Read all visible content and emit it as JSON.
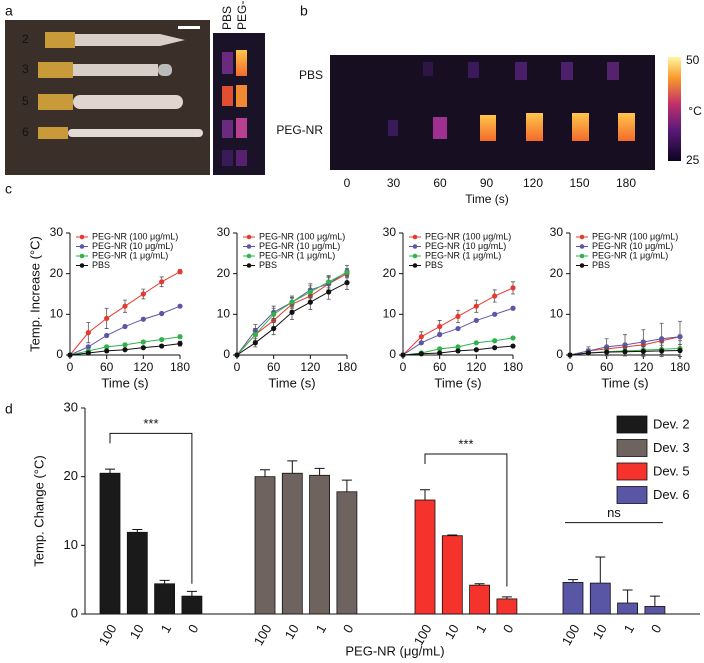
{
  "panel_labels": [
    "a",
    "b",
    "c",
    "d"
  ],
  "panel_a": {
    "rod_labels": [
      "2",
      "3",
      "5",
      "6"
    ],
    "columns": [
      "PBS",
      "PEG-NR"
    ]
  },
  "panel_b": {
    "rows": [
      "PBS",
      "PEG-NR"
    ],
    "times": [
      0,
      30,
      60,
      90,
      120,
      150,
      180
    ],
    "xlabel": "Time (s)",
    "colorbar_ticks": [
      50,
      25
    ],
    "colorbar_unit": "°C"
  },
  "chart_data": [
    {
      "type": "line",
      "ylabel": "Temp. Increase (°C)",
      "xlabel": "Time (s)",
      "x": [
        0,
        30,
        60,
        90,
        120,
        150,
        180
      ],
      "xlim": [
        0,
        180
      ],
      "ylim": [
        0,
        30
      ],
      "xticks": [
        0,
        60,
        120,
        180
      ],
      "yticks": [
        0,
        10,
        20,
        30
      ],
      "legend": "top-left",
      "series": [
        {
          "name": "PEG-NR (100 μg/mL)",
          "color": "#e8392f",
          "values": [
            0,
            5.5,
            9,
            12,
            15,
            18,
            20.5
          ],
          "errors": [
            0,
            2.5,
            2.5,
            1.5,
            1.2,
            1.2,
            0.5
          ]
        },
        {
          "name": "PEG-NR (10 μg/mL)",
          "color": "#5b57a6",
          "values": [
            0,
            2,
            4.8,
            7,
            8.8,
            10.2,
            12
          ],
          "errors": [
            0,
            0.3,
            0.3,
            0.3,
            0.3,
            0.3,
            0.3
          ]
        },
        {
          "name": "PEG-NR (1 μg/mL)",
          "color": "#2fb34a",
          "values": [
            0,
            1,
            2,
            2.5,
            3.2,
            3.8,
            4.5
          ],
          "errors": [
            0,
            0.3,
            0.3,
            0.3,
            0.3,
            0.3,
            0.4
          ]
        },
        {
          "name": "PBS",
          "color": "#111111",
          "values": [
            0,
            0.5,
            1,
            1.3,
            1.8,
            2.2,
            2.8
          ],
          "errors": [
            0,
            0.3,
            0.3,
            0.3,
            0.3,
            0.4,
            0.6
          ]
        }
      ]
    },
    {
      "type": "line",
      "xlabel": "Time (s)",
      "x": [
        0,
        30,
        60,
        90,
        120,
        150,
        180
      ],
      "xlim": [
        0,
        180
      ],
      "ylim": [
        0,
        30
      ],
      "xticks": [
        0,
        60,
        120,
        180
      ],
      "yticks": [
        0,
        10,
        20,
        30
      ],
      "legend": "top-left",
      "series": [
        {
          "name": "PEG-NR (100 μg/mL)",
          "color": "#e8392f",
          "values": [
            0,
            5,
            8.5,
            12.5,
            14.5,
            17.5,
            20
          ],
          "errors": [
            0,
            1.5,
            1.5,
            1.5,
            1.5,
            1.5,
            1
          ]
        },
        {
          "name": "PEG-NR (10 μg/mL)",
          "color": "#5b57a6",
          "values": [
            0,
            6,
            10.5,
            13,
            16,
            17.5,
            20.5
          ],
          "errors": [
            0,
            1.5,
            1.5,
            1.5,
            1.5,
            1.8,
            1.5
          ]
        },
        {
          "name": "PEG-NR (1 μg/mL)",
          "color": "#2fb34a",
          "values": [
            0,
            5,
            10,
            13,
            15.5,
            18,
            20.3
          ],
          "errors": [
            0,
            1.5,
            1.5,
            1.2,
            1.5,
            1.5,
            1
          ]
        },
        {
          "name": "PBS",
          "color": "#111111",
          "values": [
            0,
            3,
            6.5,
            10.5,
            13,
            15.5,
            17.8
          ],
          "errors": [
            0,
            1,
            1.5,
            1.8,
            1.8,
            1.8,
            1.7
          ]
        }
      ]
    },
    {
      "type": "line",
      "xlabel": "Time (s)",
      "x": [
        0,
        30,
        60,
        90,
        120,
        150,
        180
      ],
      "xlim": [
        0,
        180
      ],
      "ylim": [
        0,
        30
      ],
      "xticks": [
        0,
        60,
        120,
        180
      ],
      "yticks": [
        0,
        10,
        20,
        30
      ],
      "legend": "top-left",
      "series": [
        {
          "name": "PEG-NR (100 μg/mL)",
          "color": "#e8392f",
          "values": [
            0,
            4.5,
            7,
            9.5,
            12,
            14.5,
            16.5
          ],
          "errors": [
            0,
            1.2,
            1.5,
            1.5,
            1.5,
            1.5,
            1.5
          ]
        },
        {
          "name": "PEG-NR (10 μg/mL)",
          "color": "#5b57a6",
          "values": [
            0,
            3,
            5,
            6.5,
            8.5,
            10,
            11.5
          ],
          "errors": [
            0,
            0.3,
            0.3,
            0.3,
            0.3,
            0.3,
            0.2
          ]
        },
        {
          "name": "PEG-NR (1 μg/mL)",
          "color": "#2fb34a",
          "values": [
            0,
            0.5,
            1.5,
            2,
            3,
            3.5,
            4.2
          ],
          "errors": [
            0,
            0.2,
            0.2,
            0.2,
            0.2,
            0.2,
            0.2
          ]
        },
        {
          "name": "PBS",
          "color": "#111111",
          "values": [
            0,
            0.3,
            0.5,
            1,
            1.3,
            1.8,
            2.2
          ],
          "errors": [
            0,
            0.2,
            0.2,
            0.2,
            0.3,
            0.3,
            0.3
          ]
        }
      ]
    },
    {
      "type": "line",
      "xlabel": "Time (s)",
      "x": [
        0,
        30,
        60,
        90,
        120,
        150,
        180
      ],
      "xlim": [
        0,
        180
      ],
      "ylim": [
        0,
        30
      ],
      "xticks": [
        0,
        60,
        120,
        180
      ],
      "yticks": [
        0,
        10,
        20,
        30
      ],
      "legend": "top-left",
      "series": [
        {
          "name": "PEG-NR (100 μg/mL)",
          "color": "#e8392f",
          "values": [
            0,
            1,
            1.5,
            2,
            2.5,
            3.5,
            4.5
          ],
          "errors": [
            0,
            0.5,
            0.5,
            0.5,
            0.5,
            0.5,
            0.4
          ]
        },
        {
          "name": "PEG-NR (10 μg/mL)",
          "color": "#5b57a6",
          "values": [
            0,
            1,
            2,
            2.5,
            3.2,
            4,
            4.5
          ],
          "errors": [
            0,
            1,
            2,
            2.5,
            3,
            3.8,
            3.8
          ]
        },
        {
          "name": "PEG-NR (1 μg/mL)",
          "color": "#2fb34a",
          "values": [
            0,
            0.5,
            0.8,
            1,
            1.2,
            1.4,
            1.6
          ],
          "errors": [
            0,
            0.5,
            1,
            1.2,
            1.5,
            1.8,
            1.9
          ]
        },
        {
          "name": "PBS",
          "color": "#111111",
          "values": [
            0,
            0.5,
            0.7,
            0.8,
            0.9,
            1,
            1.1
          ],
          "errors": [
            0,
            0.5,
            0.8,
            1,
            1.2,
            1.4,
            1.5
          ]
        }
      ]
    },
    {
      "type": "bar",
      "ylabel": "Temp. Change (°C)",
      "xlabel": "PEG-NR (μg/mL)",
      "categories": [
        "100",
        "10",
        "1",
        "0"
      ],
      "ylim": [
        0,
        30
      ],
      "yticks": [
        0,
        10,
        20,
        30
      ],
      "legend": "top-right",
      "annotations": [
        "***",
        "***",
        "ns"
      ],
      "series": [
        {
          "name": "Dev. 2",
          "color": "#1b1a1a",
          "values": [
            20.5,
            11.9,
            4.4,
            2.6
          ],
          "errors": [
            0.6,
            0.4,
            0.5,
            0.7
          ]
        },
        {
          "name": "Dev. 3",
          "color": "#6f6360",
          "values": [
            20,
            20.5,
            20.2,
            17.8
          ],
          "errors": [
            1,
            1.8,
            1,
            1.7
          ]
        },
        {
          "name": "Dev. 5",
          "color": "#f5322c",
          "values": [
            16.6,
            11.4,
            4.2,
            2.2
          ],
          "errors": [
            1.5,
            0.1,
            0.2,
            0.3
          ]
        },
        {
          "name": "Dev. 6",
          "color": "#5a56a6",
          "values": [
            4.6,
            4.5,
            1.6,
            1.1
          ],
          "errors": [
            0.4,
            3.8,
            1.9,
            1.5
          ]
        }
      ]
    }
  ]
}
